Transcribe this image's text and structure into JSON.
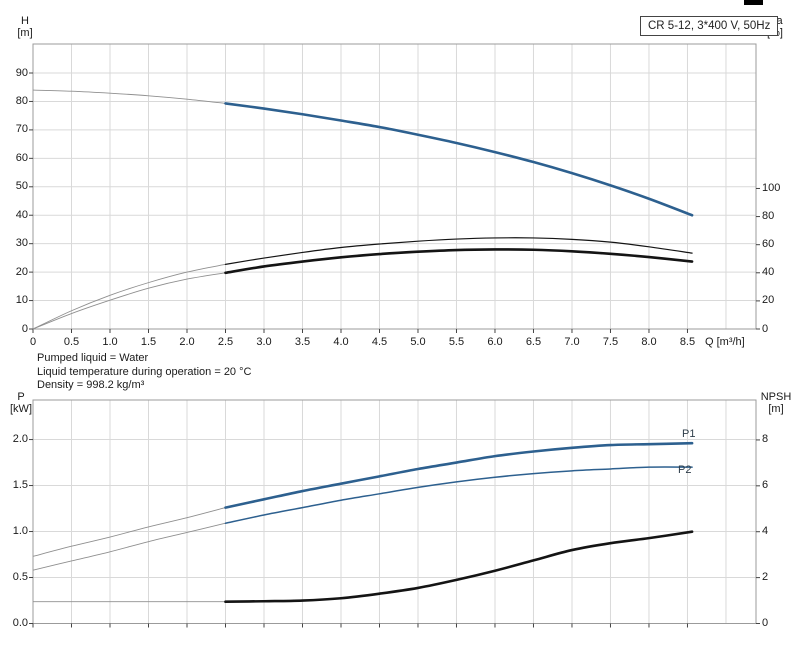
{
  "header": {
    "type_box_label": "CR 5-12, 3*400 V, 50Hz"
  },
  "info_lines": [
    "Pumped liquid = Water",
    "Liquid temperature during operation = 20 °C",
    "Density = 998.2 kg/m³"
  ],
  "colors": {
    "curve_blue": "#2d608f",
    "curve_black": "#141414",
    "curve_gray": "#8f8f8f",
    "grid": "#d9d9d9",
    "border": "#9b9b9b",
    "tick": "#444444"
  },
  "chart_data": [
    {
      "id": "head-efficiency-chart",
      "type": "line",
      "x_axis": {
        "label": "Q [m³/h]",
        "tick_values": [
          0,
          0.5,
          1,
          1.5,
          2,
          2.5,
          3,
          3.5,
          4,
          4.5,
          5,
          5.5,
          6,
          6.5,
          7,
          7.5,
          8,
          8.5
        ],
        "tick_labels": [
          "0",
          "0.5",
          "1.0",
          "1.5",
          "2.0",
          "2.5",
          "3.0",
          "3.5",
          "4.0",
          "4.5",
          "5.0",
          "5.5",
          "6.0",
          "6.5",
          "7.0",
          "7.5",
          "8.0",
          "8.5"
        ],
        "range": [
          0,
          9.39
        ],
        "show_labels": true
      },
      "y_left": {
        "title": "H",
        "unit": "[m]",
        "tick_values": [
          0,
          10,
          20,
          30,
          40,
          50,
          60,
          70,
          80,
          90
        ],
        "tick_labels": [
          "0",
          "10",
          "20",
          "30",
          "40",
          "50",
          "60",
          "70",
          "80",
          "90"
        ],
        "range": [
          0,
          100.2
        ]
      },
      "y_right": {
        "title": "eta",
        "unit": "[%]",
        "tick_values": [
          0,
          20,
          40,
          60,
          80,
          100
        ],
        "tick_labels": [
          "0",
          "20",
          "40",
          "60",
          "80",
          "100"
        ],
        "range": [
          0,
          202.8
        ]
      },
      "grid": true,
      "series": [
        {
          "name": "H-curve",
          "axis": "left",
          "duty_from": 2.5,
          "style_pre": "thin-gray",
          "style_post": "blue-thick",
          "x": [
            0,
            0.5,
            1,
            1.5,
            2,
            2.5,
            3,
            3.5,
            4,
            4.5,
            5,
            5.5,
            6,
            6.5,
            7,
            7.5,
            8,
            8.56
          ],
          "y": [
            84,
            83.6,
            82.9,
            82,
            80.8,
            79.3,
            77.5,
            75.5,
            73.3,
            71,
            68.3,
            65.4,
            62.2,
            58.7,
            54.8,
            50.5,
            45.8,
            40
          ]
        },
        {
          "name": "eta-pump-curve",
          "axis": "right",
          "duty_from": 2.5,
          "style_pre": "thin-gray",
          "style_post": "black-mid",
          "x": [
            0,
            0.5,
            1,
            1.5,
            2,
            2.5,
            3,
            3.5,
            4,
            4.5,
            5,
            5.5,
            6,
            6.5,
            7,
            7.5,
            8,
            8.56
          ],
          "y": [
            0,
            13,
            24,
            33,
            40.5,
            46,
            50.5,
            54.5,
            58,
            60.5,
            62.5,
            64,
            64.8,
            64.8,
            63.8,
            61.8,
            58.5,
            54
          ]
        },
        {
          "name": "eta-pump-motor-curve",
          "axis": "right",
          "duty_from": 2.5,
          "style_pre": "thin-gray",
          "style_post": "black-thick",
          "x": [
            0,
            0.5,
            1,
            1.5,
            2,
            2.5,
            3,
            3.5,
            4,
            4.5,
            5,
            5.5,
            6,
            6.5,
            7,
            7.5,
            8,
            8.56
          ],
          "y": [
            0,
            11,
            20.5,
            29,
            35.5,
            40,
            44.5,
            48,
            51,
            53.3,
            55,
            56.2,
            56.6,
            56.4,
            55.3,
            53.5,
            51.2,
            48
          ]
        }
      ]
    },
    {
      "id": "power-npsh-chart",
      "type": "line",
      "x_axis": {
        "label": "",
        "tick_values": [
          0,
          0.5,
          1,
          1.5,
          2,
          2.5,
          3,
          3.5,
          4,
          4.5,
          5,
          5.5,
          6,
          6.5,
          7,
          7.5,
          8,
          8.5
        ],
        "tick_labels": [],
        "range": [
          0,
          9.39
        ],
        "show_labels": false
      },
      "y_left": {
        "title": "P",
        "unit": "[kW]",
        "tick_values": [
          0,
          0.5,
          1,
          1.5,
          2
        ],
        "tick_labels": [
          "0.0",
          "0.5",
          "1.0",
          "1.5",
          "2.0"
        ],
        "range": [
          0,
          2.43
        ]
      },
      "y_right": {
        "title": "NPSH",
        "unit": "[m]",
        "tick_values": [
          0,
          2,
          4,
          6,
          8
        ],
        "tick_labels": [
          "0",
          "2",
          "4",
          "6",
          "8"
        ],
        "range": [
          0,
          9.74
        ]
      },
      "grid": true,
      "series": [
        {
          "name": "P1-curve",
          "axis": "left",
          "duty_from": 2.5,
          "label": "P1",
          "style_pre": "thin-gray",
          "style_post": "blue-thick",
          "x": [
            0,
            0.5,
            1,
            1.5,
            2,
            2.5,
            3,
            3.5,
            4,
            4.5,
            5,
            5.5,
            6,
            6.5,
            7,
            7.5,
            8,
            8.56
          ],
          "y": [
            0.73,
            0.84,
            0.94,
            1.05,
            1.15,
            1.26,
            1.35,
            1.44,
            1.52,
            1.6,
            1.68,
            1.75,
            1.82,
            1.87,
            1.91,
            1.94,
            1.95,
            1.96
          ]
        },
        {
          "name": "P2-curve",
          "axis": "left",
          "duty_from": 2.5,
          "label": "P2",
          "style_pre": "thin-gray",
          "style_post": "blue-mid",
          "x": [
            0,
            0.5,
            1,
            1.5,
            2,
            2.5,
            3,
            3.5,
            4,
            4.5,
            5,
            5.5,
            6,
            6.5,
            7,
            7.5,
            8,
            8.56
          ],
          "y": [
            0.58,
            0.68,
            0.78,
            0.89,
            0.99,
            1.09,
            1.18,
            1.26,
            1.34,
            1.41,
            1.48,
            1.54,
            1.59,
            1.63,
            1.66,
            1.68,
            1.7,
            1.7
          ]
        },
        {
          "name": "NPSH-curve",
          "axis": "right",
          "duty_from": 2.5,
          "style_pre": "thin-gray",
          "style_post": "black-thick",
          "x": [
            0,
            0.5,
            1,
            1.5,
            2,
            2.5,
            3,
            3.5,
            4,
            4.5,
            5,
            5.5,
            6,
            6.5,
            7,
            7.5,
            8,
            8.56
          ],
          "y": [
            0.95,
            0.95,
            0.95,
            0.95,
            0.95,
            0.95,
            0.97,
            1.0,
            1.1,
            1.3,
            1.55,
            1.9,
            2.3,
            2.75,
            3.2,
            3.5,
            3.72,
            4.0
          ]
        }
      ]
    }
  ],
  "curve_labels": {
    "p1": "P1",
    "p2": "P2"
  }
}
